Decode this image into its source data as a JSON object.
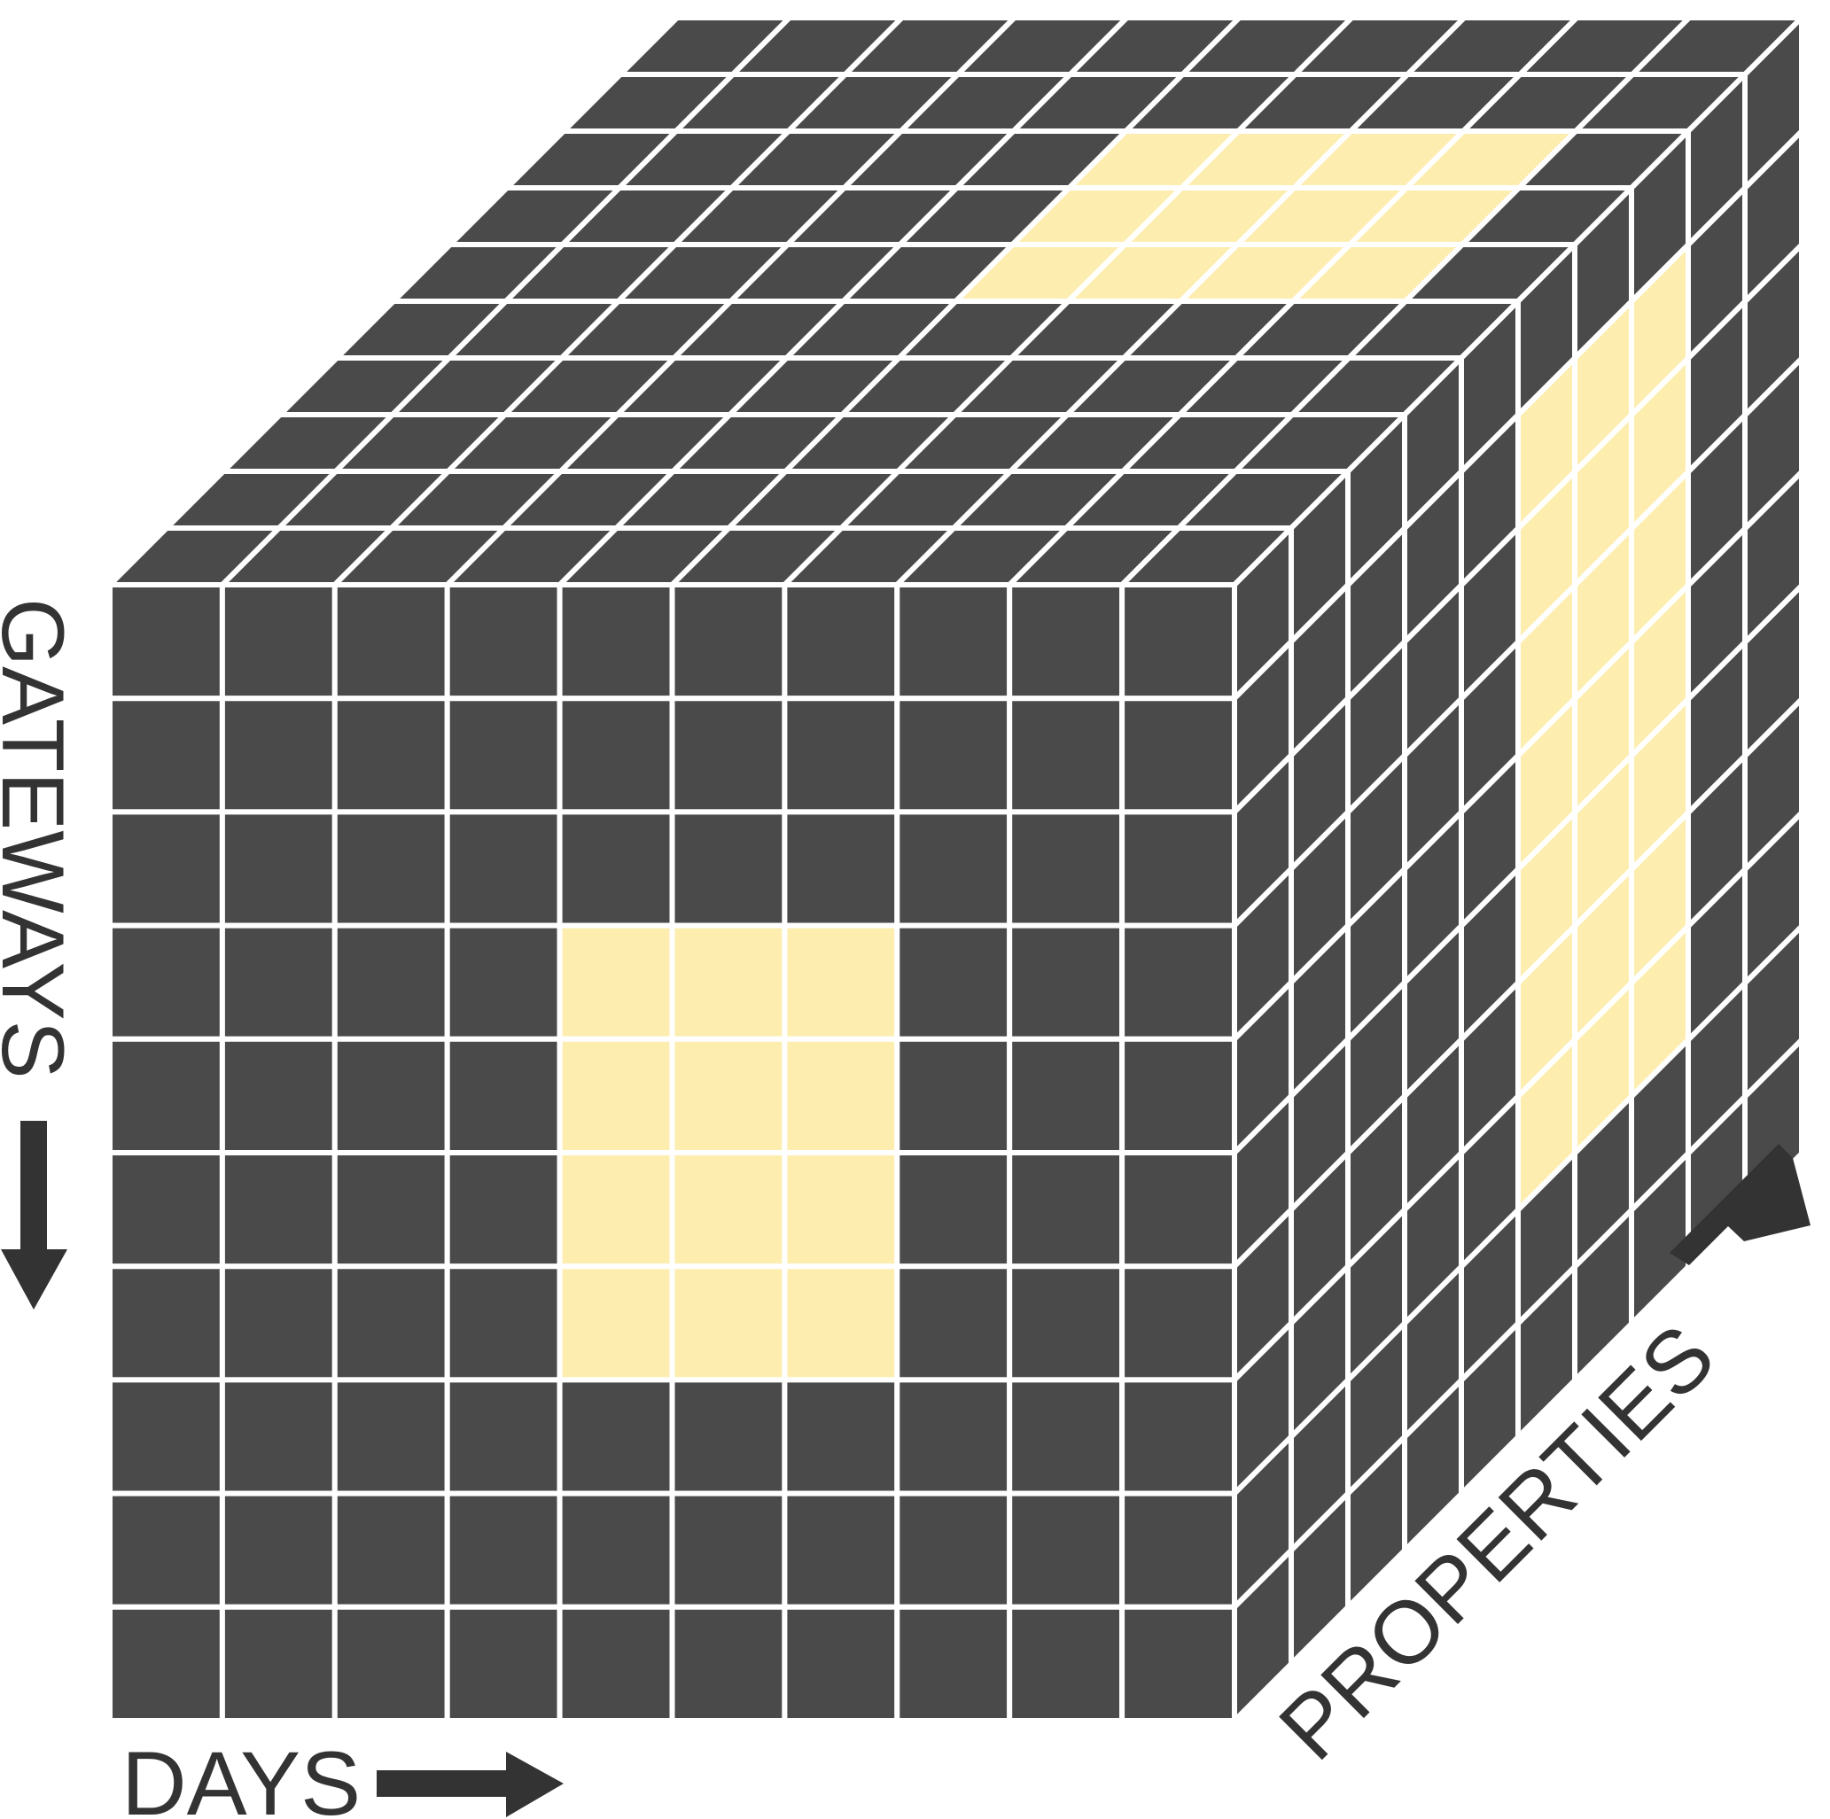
{
  "diagram": {
    "axes": {
      "days": "DAYS",
      "gateways": "GATEWAYS",
      "properties": "PROPERTIES"
    },
    "grid": {
      "days_count": 10,
      "gateways_count": 10,
      "properties_count": 10
    },
    "highlights": {
      "front_face": {
        "days": [
          4,
          6
        ],
        "gateways": [
          3,
          6
        ]
      },
      "top_face": {
        "days": [
          5,
          8
        ],
        "properties": [
          5,
          7
        ]
      },
      "side_face": {
        "properties": [
          5,
          7
        ],
        "gateways": [
          1,
          7
        ]
      }
    },
    "colors": {
      "cell": "#4a4a4a",
      "highlight": "#fdeeb0",
      "grid_line": "#ffffff",
      "arrow": "#333333",
      "label": "#333333"
    }
  }
}
